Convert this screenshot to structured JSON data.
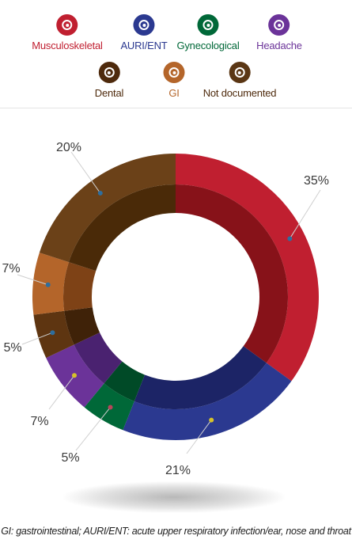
{
  "legend": [
    {
      "label": "Musculoskeletal",
      "color": "#c01f30",
      "text_color": "#c01f30"
    },
    {
      "label": "AURI/ENT",
      "color": "#2b3990",
      "text_color": "#2b3990"
    },
    {
      "label": "Gynecological",
      "color": "#006838",
      "text_color": "#006838"
    },
    {
      "label": "Headache",
      "color": "#6b3399",
      "text_color": "#6b3399"
    },
    {
      "label": "Dental",
      "color": "#4e2a0c",
      "text_color": "#4e2a0c"
    },
    {
      "label": "GI",
      "color": "#b4652a",
      "text_color": "#b4652a"
    },
    {
      "label": "Not documented",
      "color": "#5a3614",
      "text_color": "#4e2a0c"
    }
  ],
  "chart_data": {
    "type": "pie",
    "style": "donut",
    "slices": [
      {
        "category": "Musculoskeletal",
        "value": 35,
        "label": "35%",
        "outer_color": "#c01f30",
        "inner_color": "#871219",
        "dot_color": "#2e6e9e"
      },
      {
        "category": "AURI/ENT",
        "value": 21,
        "label": "21%",
        "outer_color": "#2b3990",
        "inner_color": "#1c2466",
        "dot_color": "#d6c22a"
      },
      {
        "category": "Gynecological",
        "value": 5,
        "label": "5%",
        "outer_color": "#006838",
        "inner_color": "#004a27",
        "dot_color": "#b8455a"
      },
      {
        "category": "Headache",
        "value": 7,
        "label": "7%",
        "outer_color": "#6b3399",
        "inner_color": "#4a2270",
        "dot_color": "#d6c22a"
      },
      {
        "category": "Dental",
        "value": 5,
        "label": "5%",
        "outer_color": "#5e3511",
        "inner_color": "#3f2208",
        "dot_color": "#2e6e9e"
      },
      {
        "category": "GI",
        "value": 7,
        "label": "7%",
        "outer_color": "#b4652a",
        "inner_color": "#7e4216",
        "dot_color": "#2e6e9e"
      },
      {
        "category": "Not documented",
        "value": 20,
        "label": "20%",
        "outer_color": "#6b4118",
        "inner_color": "#4a2a08",
        "dot_color": "#2e6e9e"
      }
    ]
  },
  "footnote": "GI: gastrointestinal; AURI/ENT: acute upper respiratory infection/ear, nose and throat"
}
